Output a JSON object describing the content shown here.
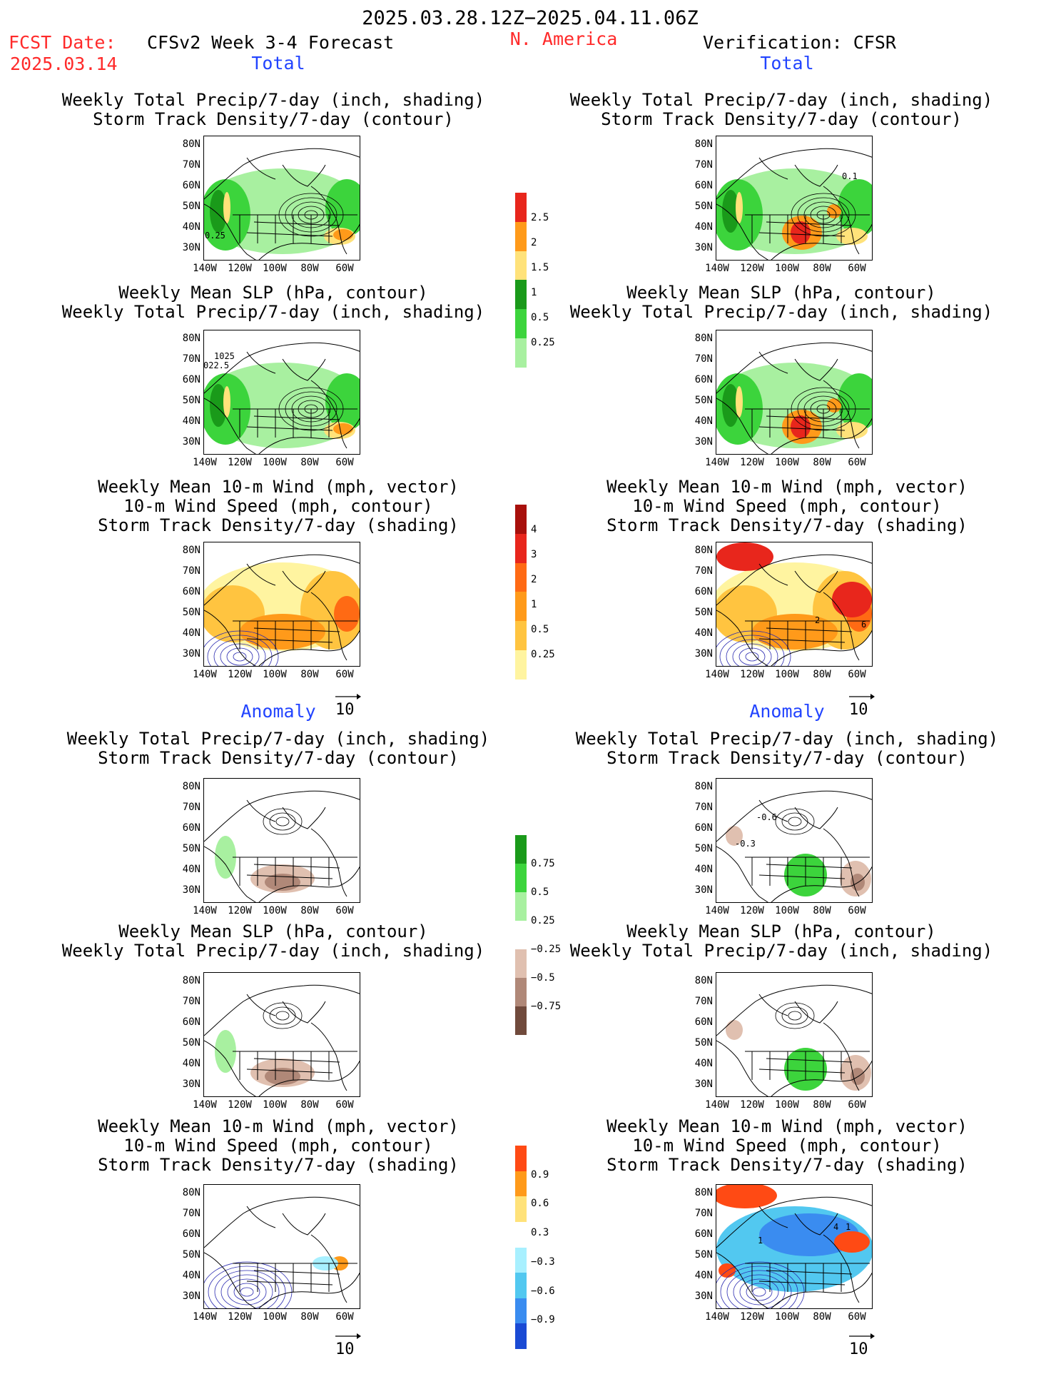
{
  "header": {
    "date_range": "2025.03.28.12Z−2025.04.11.06Z",
    "fcst_label": "FCST Date:",
    "fcst_date": "2025.03.14",
    "model": "CFSv2 Week 3-4 Forecast",
    "region": "N. America",
    "verification": "Verification: CFSR"
  },
  "sections": {
    "total": "Total",
    "anomaly": "Anomaly"
  },
  "titles": {
    "precip_storm": [
      "Weekly Total Precip/7-day (inch, shading)",
      "Storm Track Density/7-day (contour)"
    ],
    "slp_precip": [
      "Weekly Mean SLP (hPa, contour)",
      "Weekly Total Precip/7-day (inch, shading)"
    ],
    "wind": [
      "Weekly Mean 10-m Wind (mph, vector)",
      "10-m Wind Speed (mph, contour)",
      "Storm Track Density/7-day (shading)"
    ]
  },
  "axes": {
    "lat_ticks": [
      "80N",
      "70N",
      "60N",
      "50N",
      "40N",
      "30N"
    ],
    "lon_ticks": [
      "140W",
      "120W",
      "100W",
      "80W",
      "60W"
    ]
  },
  "vector_ref": "10",
  "panel_labels": {
    "p1": "0.25",
    "p2": "0.1",
    "p3a": "1025",
    "p3b": "022.5",
    "p6": "2",
    "p6b": "6",
    "p8a": "-0.6",
    "p8b": "-0.3",
    "p12a": "1",
    "p12b": "4",
    "p12c": "1"
  },
  "colorbars": [
    {
      "name": "total-precip",
      "labels": [
        "2.5",
        "2",
        "1.5",
        "1",
        "0.5",
        "0.25"
      ],
      "colors": [
        "#e8261c",
        "#ff9a1a",
        "#ffe27a",
        "#1a9a1a",
        "#3cd43c",
        "#a8f0a0"
      ]
    },
    {
      "name": "total-storm",
      "labels": [
        "4",
        "3",
        "2",
        "1",
        "0.5",
        "0.25"
      ],
      "colors": [
        "#a8100c",
        "#e8261c",
        "#ff6a14",
        "#ff9a1a",
        "#ffc440",
        "#fff4a0"
      ]
    },
    {
      "name": "anom-precip",
      "labels": [
        "0.75",
        "0.5",
        "0.25",
        "−0.25",
        "−0.5",
        "−0.75"
      ],
      "colors": [
        "#1a9a1a",
        "#3cd43c",
        "#a8f0a0",
        "#ffffff",
        "#e0c0b0",
        "#b08878",
        "#704a3c"
      ]
    },
    {
      "name": "anom-storm",
      "labels": [
        "0.9",
        "0.6",
        "0.3",
        "−0.3",
        "−0.6",
        "−0.9"
      ],
      "colors": [
        "#ff4a14",
        "#ff9a1a",
        "#ffe27a",
        "#ffffff",
        "#a8f0ff",
        "#52c8f0",
        "#3a8cf0",
        "#1a4ad4"
      ]
    }
  ],
  "colors": {
    "precip_light": "#a8f0a0",
    "precip_mid": "#3cd43c",
    "precip_dark": "#1a9a1a",
    "yellow": "#ffe27a",
    "orange": "#ff9a1a",
    "red": "#e8261c",
    "brown_light": "#e0c0b0",
    "brown_mid": "#b08878",
    "blue_mid": "#3a8cf0"
  }
}
